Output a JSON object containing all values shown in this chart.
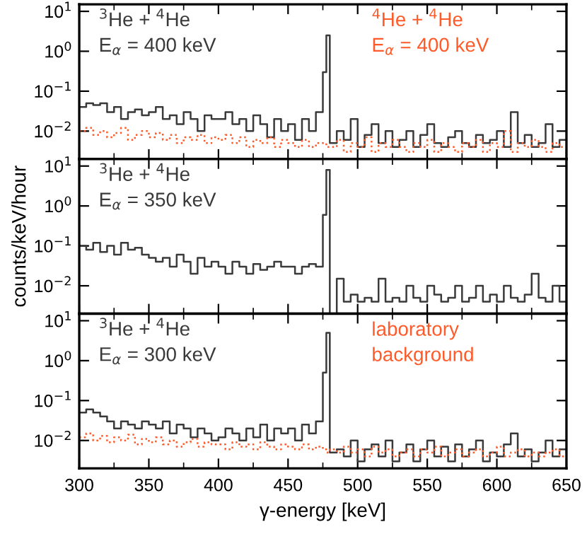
{
  "chart_data": [
    {
      "type": "step",
      "x": [
        300,
        305,
        310,
        315,
        320,
        325,
        330,
        335,
        340,
        345,
        350,
        355,
        360,
        365,
        370,
        375,
        380,
        385,
        390,
        395,
        400,
        405,
        410,
        415,
        420,
        425,
        430,
        435,
        440,
        445,
        450,
        455,
        460,
        465,
        470,
        475,
        477.5,
        480,
        485,
        490,
        495,
        500,
        505,
        510,
        515,
        520,
        525,
        530,
        535,
        540,
        545,
        550,
        555,
        560,
        565,
        570,
        575,
        580,
        585,
        590,
        595,
        600,
        605,
        610,
        615,
        620,
        625,
        630,
        635,
        640,
        645,
        650
      ],
      "xlim": [
        300,
        650
      ],
      "xticks": [
        300,
        350,
        400,
        450,
        500,
        550,
        600,
        650
      ],
      "log": "y",
      "ylim": [
        0.002,
        15
      ],
      "yticks": [
        {
          "value": 0.01,
          "label": "10$^{−2}$"
        },
        {
          "value": 0.1,
          "label": "10$^{−1}$"
        },
        {
          "value": 1,
          "label": "10$^{0}$"
        },
        {
          "value": 10,
          "label": "10$^{1}$"
        }
      ],
      "tick_labels": "y",
      "series": [
        {
          "name": "$^{3}$He + $^{4}$He\nE$_{α}$ = 400 keV",
          "color": "#3a3a3a",
          "line_style": "solid",
          "values": [
            0.04,
            0.05,
            0.045,
            0.05,
            0.03,
            0.04,
            0.02,
            0.03,
            0.035,
            0.025,
            0.03,
            0.04,
            0.02,
            0.025,
            0.015,
            0.03,
            0.02,
            0.01,
            0.025,
            0.02,
            0.02,
            0.03,
            0.015,
            0.02,
            0.01,
            0.025,
            0.015,
            0.007,
            0.02,
            0.01,
            0.015,
            0.006,
            0.02,
            0.01,
            0.03,
            0.3,
            2.5,
            0.005,
            0.01,
            0.006,
            0.02,
            0.004,
            0.008,
            0.015,
            0.005,
            0.01,
            0.004,
            0.006,
            0.01,
            0.004,
            0.008,
            0.015,
            0.005,
            0.004,
            0.007,
            0.01,
            0.005,
            0.004,
            0.008,
            0.005,
            0.006,
            0.01,
            0.004,
            0.03,
            0.005,
            0.008,
            0.004,
            0.005,
            0.015,
            0.004,
            0.006,
            0.006
          ]
        },
        {
          "name": "$^{4}$He + $^{4}$He\nE$_{α}$ = 400 keV",
          "color": "#ff5a2a",
          "line_style": "dotted",
          "values": [
            0.01,
            0.012,
            0.008,
            0.01,
            0.007,
            0.009,
            0.012,
            0.006,
            0.008,
            0.01,
            0.007,
            0.009,
            0.006,
            0.008,
            0.005,
            0.007,
            0.006,
            0.008,
            0.005,
            0.007,
            0.006,
            0.008,
            0.005,
            0.007,
            0.004,
            0.006,
            0.005,
            0.007,
            0.004,
            0.006,
            0.005,
            0.004,
            0.006,
            0.004,
            0.005,
            0.005,
            0.004,
            0.004,
            0.006,
            0.003,
            0.005,
            0.004,
            0.007,
            0.003,
            0.005,
            0.004,
            0.006,
            0.004,
            0.003,
            0.005,
            0.004,
            0.006,
            0.003,
            0.005,
            0.004,
            0.003,
            0.005,
            0.004,
            0.006,
            0.003,
            0.005,
            0.004,
            0.01,
            0.003,
            0.005,
            0.004,
            0.006,
            0.004,
            0.003,
            0.005,
            0.004,
            0.004
          ]
        }
      ]
    },
    {
      "type": "step",
      "x": [
        300,
        305,
        310,
        315,
        320,
        325,
        330,
        335,
        340,
        345,
        350,
        355,
        360,
        365,
        370,
        375,
        380,
        385,
        390,
        395,
        400,
        405,
        410,
        415,
        420,
        425,
        430,
        435,
        440,
        445,
        450,
        455,
        460,
        465,
        470,
        475,
        477.5,
        480,
        485,
        490,
        495,
        500,
        505,
        510,
        515,
        520,
        525,
        530,
        535,
        540,
        545,
        550,
        555,
        560,
        565,
        570,
        575,
        580,
        585,
        590,
        595,
        600,
        605,
        610,
        615,
        620,
        625,
        630,
        635,
        640,
        645,
        650
      ],
      "xlim": [
        300,
        650
      ],
      "xticks": [
        300,
        350,
        400,
        450,
        500,
        550,
        600,
        650
      ],
      "log": "y",
      "ylim": [
        0.002,
        15
      ],
      "yticks": [
        {
          "value": 0.01,
          "label": "10$^{−2}$"
        },
        {
          "value": 0.1,
          "label": "10$^{−1}$"
        },
        {
          "value": 1,
          "label": "10$^{0}$"
        },
        {
          "value": 10,
          "label": "10$^{1}$"
        }
      ],
      "tick_labels": "y",
      "ylabel": "counts/keV/hour",
      "series": [
        {
          "name": "$^{3}$He + $^{4}$He\nE$_{α}$ = 350 keV",
          "color": "#3a3a3a",
          "line_style": "solid",
          "values": [
            0.1,
            0.08,
            0.12,
            0.07,
            0.1,
            0.06,
            0.12,
            0.08,
            0.09,
            0.06,
            0.05,
            0.04,
            0.05,
            0.03,
            0.06,
            0.04,
            0.02,
            0.05,
            0.03,
            0.04,
            0.03,
            0.02,
            0.04,
            0.03,
            0.02,
            0.035,
            0.025,
            0.03,
            0.04,
            0.03,
            0.03,
            0.02,
            0.03,
            0.035,
            0.03,
            0.6,
            8,
            0.002,
            0.015,
            0.004,
            0.006,
            0.004,
            0.005,
            0.004,
            0.015,
            0.004,
            0.005,
            0.004,
            0.01,
            0.005,
            0.004,
            0.01,
            0.006,
            0.004,
            0.005,
            0.01,
            0.004,
            0.005,
            0.01,
            0.004,
            0.006,
            0.004,
            0.01,
            0.005,
            0.004,
            0.006,
            0.02,
            0.005,
            0.004,
            0.01,
            0.004,
            0.004
          ]
        }
      ]
    },
    {
      "type": "step",
      "x": [
        300,
        305,
        310,
        315,
        320,
        325,
        330,
        335,
        340,
        345,
        350,
        355,
        360,
        365,
        370,
        375,
        380,
        385,
        390,
        395,
        400,
        405,
        410,
        415,
        420,
        425,
        430,
        435,
        440,
        445,
        450,
        455,
        460,
        465,
        470,
        475,
        477.5,
        480,
        485,
        490,
        495,
        500,
        505,
        510,
        515,
        520,
        525,
        530,
        535,
        540,
        545,
        550,
        555,
        560,
        565,
        570,
        575,
        580,
        585,
        590,
        595,
        600,
        605,
        610,
        615,
        620,
        625,
        630,
        635,
        640,
        645,
        650
      ],
      "xlim": [
        300,
        650
      ],
      "xticks": [
        300,
        350,
        400,
        450,
        500,
        550,
        600,
        650
      ],
      "log": "y",
      "ylim": [
        0.002,
        15
      ],
      "yticks": [
        {
          "value": 0.01,
          "label": "10$^{−2}$"
        },
        {
          "value": 0.1,
          "label": "10$^{−1}$"
        },
        {
          "value": 1,
          "label": "10$^{0}$"
        },
        {
          "value": 10,
          "label": "10$^{1}$"
        }
      ],
      "xlabel": "γ-energy [keV]",
      "series": [
        {
          "name": "$^{3}$He + $^{4}$He\nE$_{α}$ = 300 keV",
          "color": "#3a3a3a",
          "line_style": "solid",
          "values": [
            0.05,
            0.06,
            0.05,
            0.04,
            0.03,
            0.02,
            0.03,
            0.025,
            0.02,
            0.03,
            0.025,
            0.02,
            0.03,
            0.015,
            0.025,
            0.02,
            0.012,
            0.02,
            0.015,
            0.01,
            0.012,
            0.02,
            0.015,
            0.01,
            0.02,
            0.012,
            0.025,
            0.01,
            0.02,
            0.015,
            0.02,
            0.01,
            0.025,
            0.015,
            0.03,
            0.5,
            5,
            0.005,
            0.006,
            0.004,
            0.01,
            0.003,
            0.006,
            0.008,
            0.004,
            0.01,
            0.003,
            0.005,
            0.008,
            0.003,
            0.006,
            0.01,
            0.004,
            0.007,
            0.003,
            0.008,
            0.004,
            0.006,
            0.01,
            0.003,
            0.005,
            0.004,
            0.008,
            0.015,
            0.004,
            0.006,
            0.003,
            0.005,
            0.01,
            0.004,
            0.006,
            0.005
          ]
        },
        {
          "name": "laboratory\nbackground",
          "color": "#ff5a2a",
          "line_style": "dotted",
          "values": [
            0.012,
            0.015,
            0.01,
            0.013,
            0.009,
            0.012,
            0.01,
            0.014,
            0.008,
            0.011,
            0.009,
            0.012,
            0.008,
            0.01,
            0.007,
            0.009,
            0.011,
            0.007,
            0.009,
            0.008,
            0.008,
            0.006,
            0.009,
            0.007,
            0.008,
            0.006,
            0.009,
            0.007,
            0.006,
            0.008,
            0.007,
            0.006,
            0.008,
            0.006,
            0.007,
            0.006,
            0.005,
            0.006,
            0.005,
            0.007,
            0.005,
            0.006,
            0.004,
            0.007,
            0.005,
            0.006,
            0.004,
            0.005,
            0.006,
            0.004,
            0.006,
            0.005,
            0.007,
            0.004,
            0.005,
            0.006,
            0.004,
            0.005,
            0.006,
            0.004,
            0.005,
            0.007,
            0.004,
            0.005,
            0.006,
            0.004,
            0.005,
            0.004,
            0.005,
            0.006,
            0.004,
            0.005
          ]
        }
      ]
    }
  ]
}
